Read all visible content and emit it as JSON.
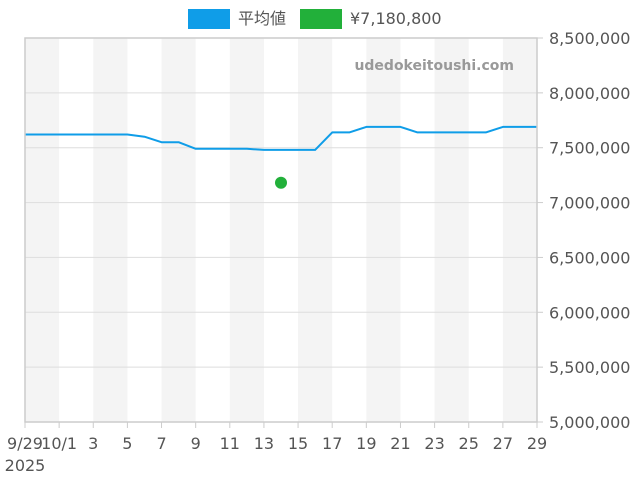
{
  "legend": {
    "items": [
      {
        "label": "平均値",
        "color": "#0f9de8"
      },
      {
        "label": "¥7,180,800",
        "color": "#22b03a"
      }
    ]
  },
  "watermark": "udedokeitoushi.com",
  "colors": {
    "line": "#0f9de8",
    "point": "#22b03a",
    "band": "#f4f4f4",
    "grid": "#dddddd",
    "axis": "#cccccc",
    "text": "#555555"
  },
  "chart_data": {
    "type": "line",
    "title": "",
    "xlabel": "",
    "ylabel": "",
    "ylim": [
      5000000,
      8500000
    ],
    "y_ticks": [
      "8,500,000",
      "8,000,000",
      "7,500,000",
      "7,000,000",
      "6,500,000",
      "6,000,000",
      "5,500,000",
      "5,000,000"
    ],
    "x_ticks": [
      "9/29",
      "10/1",
      "3",
      "5",
      "7",
      "9",
      "11",
      "13",
      "15",
      "17",
      "19",
      "21",
      "23",
      "25",
      "27",
      "29"
    ],
    "x_year_label": "2025",
    "legend_position": "top",
    "grid": true,
    "series": [
      {
        "name": "平均値",
        "type": "line",
        "x": [
          "2025-09-29",
          "2025-10-05",
          "2025-10-06",
          "2025-10-07",
          "2025-10-08",
          "2025-10-09",
          "2025-10-12",
          "2025-10-13",
          "2025-10-16",
          "2025-10-17",
          "2025-10-18",
          "2025-10-19",
          "2025-10-21",
          "2025-10-22",
          "2025-10-26",
          "2025-10-27",
          "2025-10-29"
        ],
        "values": [
          7620000,
          7620000,
          7600000,
          7550000,
          7550000,
          7490000,
          7490000,
          7480000,
          7480000,
          7640000,
          7640000,
          7690000,
          7690000,
          7640000,
          7640000,
          7690000,
          7690000
        ]
      },
      {
        "name": "¥7,180,800",
        "type": "scatter",
        "x": [
          "2025-10-14"
        ],
        "values": [
          7180800
        ]
      }
    ]
  }
}
